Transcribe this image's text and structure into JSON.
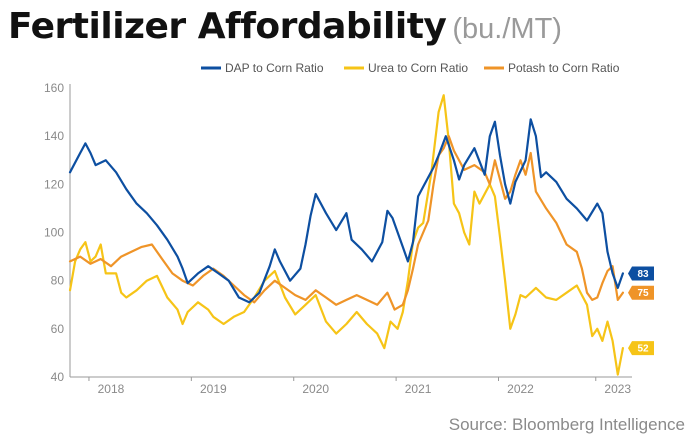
{
  "header": {
    "title": "Fertilizer Affordability",
    "unit": "(bu./MT)"
  },
  "footer": {
    "source": "Source: Bloomberg Intelligence"
  },
  "colors": {
    "DAP": "#0d4fa1",
    "Urea": "#f6c417",
    "Potash": "#ef9428",
    "axis": "#9a9a9a",
    "grid": "#e8e8e8"
  },
  "chart_data": {
    "type": "line",
    "title": "Fertilizer Affordability",
    "unit": "(bu./MT)",
    "xlabel": "",
    "ylabel": "",
    "ylim": [
      40,
      160
    ],
    "yticks": [
      40,
      60,
      80,
      100,
      120,
      140,
      160
    ],
    "xlim": [
      2017.75,
      2023.2
    ],
    "xticks": [
      {
        "x": 2018.15,
        "label": "2018"
      },
      {
        "x": 2019.15,
        "label": "2019"
      },
      {
        "x": 2020.15,
        "label": "2020"
      },
      {
        "x": 2021.15,
        "label": "2021"
      },
      {
        "x": 2022.15,
        "label": "2022"
      },
      {
        "x": 2023.1,
        "label": "2023"
      }
    ],
    "legend_position": "top-right",
    "grid": false,
    "series": [
      {
        "name": "DAP to Corn Ratio",
        "end_label": "83",
        "points": [
          [
            2017.75,
            125
          ],
          [
            2017.85,
            133
          ],
          [
            2017.9,
            137
          ],
          [
            2017.95,
            133
          ],
          [
            2018.0,
            128
          ],
          [
            2018.1,
            130
          ],
          [
            2018.2,
            125
          ],
          [
            2018.3,
            118
          ],
          [
            2018.4,
            112
          ],
          [
            2018.5,
            108
          ],
          [
            2018.6,
            103
          ],
          [
            2018.7,
            97
          ],
          [
            2018.8,
            90
          ],
          [
            2018.85,
            85
          ],
          [
            2018.9,
            79
          ],
          [
            2019.0,
            83
          ],
          [
            2019.1,
            86
          ],
          [
            2019.2,
            83
          ],
          [
            2019.3,
            80
          ],
          [
            2019.4,
            73
          ],
          [
            2019.5,
            71
          ],
          [
            2019.6,
            75
          ],
          [
            2019.7,
            86
          ],
          [
            2019.75,
            93
          ],
          [
            2019.8,
            88
          ],
          [
            2019.9,
            80
          ],
          [
            2020.0,
            85
          ],
          [
            2020.05,
            95
          ],
          [
            2020.1,
            107
          ],
          [
            2020.15,
            116
          ],
          [
            2020.25,
            108
          ],
          [
            2020.35,
            101
          ],
          [
            2020.45,
            108
          ],
          [
            2020.5,
            97
          ],
          [
            2020.6,
            93
          ],
          [
            2020.7,
            88
          ],
          [
            2020.8,
            96
          ],
          [
            2020.85,
            109
          ],
          [
            2020.9,
            106
          ],
          [
            2021.0,
            94
          ],
          [
            2021.05,
            88
          ],
          [
            2021.1,
            96
          ],
          [
            2021.15,
            115
          ],
          [
            2021.2,
            119
          ],
          [
            2021.3,
            127
          ],
          [
            2021.35,
            132
          ],
          [
            2021.42,
            140
          ],
          [
            2021.5,
            130
          ],
          [
            2021.55,
            122
          ],
          [
            2021.6,
            128
          ],
          [
            2021.7,
            135
          ],
          [
            2021.8,
            124
          ],
          [
            2021.85,
            140
          ],
          [
            2021.9,
            146
          ],
          [
            2021.95,
            132
          ],
          [
            2022.0,
            120
          ],
          [
            2022.05,
            112
          ],
          [
            2022.1,
            121
          ],
          [
            2022.2,
            130
          ],
          [
            2022.25,
            147
          ],
          [
            2022.3,
            140
          ],
          [
            2022.35,
            123
          ],
          [
            2022.4,
            125
          ],
          [
            2022.5,
            121
          ],
          [
            2022.6,
            114
          ],
          [
            2022.7,
            110
          ],
          [
            2022.8,
            105
          ],
          [
            2022.9,
            112
          ],
          [
            2022.95,
            108
          ],
          [
            2023.0,
            92
          ],
          [
            2023.05,
            83
          ],
          [
            2023.1,
            77
          ],
          [
            2023.15,
            83
          ]
        ]
      },
      {
        "name": "Urea to Corn Ratio",
        "end_label": "52",
        "points": [
          [
            2017.75,
            76
          ],
          [
            2017.8,
            88
          ],
          [
            2017.85,
            93
          ],
          [
            2017.9,
            96
          ],
          [
            2017.95,
            88
          ],
          [
            2018.0,
            90
          ],
          [
            2018.05,
            95
          ],
          [
            2018.1,
            83
          ],
          [
            2018.2,
            83
          ],
          [
            2018.25,
            75
          ],
          [
            2018.3,
            73
          ],
          [
            2018.4,
            76
          ],
          [
            2018.5,
            80
          ],
          [
            2018.6,
            82
          ],
          [
            2018.7,
            73
          ],
          [
            2018.8,
            68
          ],
          [
            2018.85,
            62
          ],
          [
            2018.9,
            67
          ],
          [
            2019.0,
            71
          ],
          [
            2019.1,
            68
          ],
          [
            2019.15,
            65
          ],
          [
            2019.25,
            62
          ],
          [
            2019.35,
            65
          ],
          [
            2019.45,
            67
          ],
          [
            2019.55,
            73
          ],
          [
            2019.65,
            80
          ],
          [
            2019.75,
            84
          ],
          [
            2019.85,
            73
          ],
          [
            2019.95,
            66
          ],
          [
            2020.05,
            70
          ],
          [
            2020.15,
            74
          ],
          [
            2020.25,
            63
          ],
          [
            2020.35,
            58
          ],
          [
            2020.45,
            62
          ],
          [
            2020.55,
            67
          ],
          [
            2020.65,
            62
          ],
          [
            2020.75,
            58
          ],
          [
            2020.82,
            52
          ],
          [
            2020.88,
            63
          ],
          [
            2020.95,
            60
          ],
          [
            2021.0,
            67
          ],
          [
            2021.05,
            80
          ],
          [
            2021.1,
            96
          ],
          [
            2021.15,
            102
          ],
          [
            2021.2,
            104
          ],
          [
            2021.28,
            125
          ],
          [
            2021.35,
            150
          ],
          [
            2021.4,
            157
          ],
          [
            2021.45,
            138
          ],
          [
            2021.5,
            112
          ],
          [
            2021.55,
            108
          ],
          [
            2021.6,
            100
          ],
          [
            2021.65,
            95
          ],
          [
            2021.7,
            117
          ],
          [
            2021.75,
            112
          ],
          [
            2021.85,
            120
          ],
          [
            2021.9,
            115
          ],
          [
            2021.95,
            98
          ],
          [
            2022.0,
            80
          ],
          [
            2022.05,
            60
          ],
          [
            2022.1,
            66
          ],
          [
            2022.15,
            74
          ],
          [
            2022.2,
            73
          ],
          [
            2022.3,
            77
          ],
          [
            2022.4,
            73
          ],
          [
            2022.5,
            72
          ],
          [
            2022.6,
            75
          ],
          [
            2022.7,
            78
          ],
          [
            2022.8,
            70
          ],
          [
            2022.85,
            57
          ],
          [
            2022.9,
            60
          ],
          [
            2022.95,
            55
          ],
          [
            2023.0,
            63
          ],
          [
            2023.05,
            55
          ],
          [
            2023.1,
            41
          ],
          [
            2023.15,
            52
          ]
        ]
      },
      {
        "name": "Potash to Corn Ratio",
        "end_label": "75",
        "points": [
          [
            2017.75,
            88
          ],
          [
            2017.85,
            90
          ],
          [
            2017.95,
            87
          ],
          [
            2018.05,
            89
          ],
          [
            2018.15,
            86
          ],
          [
            2018.25,
            90
          ],
          [
            2018.35,
            92
          ],
          [
            2018.45,
            94
          ],
          [
            2018.55,
            95
          ],
          [
            2018.65,
            89
          ],
          [
            2018.75,
            83
          ],
          [
            2018.85,
            80
          ],
          [
            2018.95,
            78
          ],
          [
            2019.05,
            82
          ],
          [
            2019.15,
            85
          ],
          [
            2019.25,
            82
          ],
          [
            2019.35,
            78
          ],
          [
            2019.45,
            74
          ],
          [
            2019.55,
            71
          ],
          [
            2019.65,
            76
          ],
          [
            2019.75,
            80
          ],
          [
            2019.85,
            77
          ],
          [
            2019.95,
            74
          ],
          [
            2020.05,
            72
          ],
          [
            2020.15,
            76
          ],
          [
            2020.25,
            73
          ],
          [
            2020.35,
            70
          ],
          [
            2020.45,
            72
          ],
          [
            2020.55,
            74
          ],
          [
            2020.65,
            72
          ],
          [
            2020.75,
            70
          ],
          [
            2020.85,
            75
          ],
          [
            2020.92,
            68
          ],
          [
            2021.0,
            70
          ],
          [
            2021.05,
            76
          ],
          [
            2021.1,
            85
          ],
          [
            2021.15,
            95
          ],
          [
            2021.25,
            105
          ],
          [
            2021.3,
            120
          ],
          [
            2021.35,
            132
          ],
          [
            2021.4,
            135
          ],
          [
            2021.45,
            140
          ],
          [
            2021.5,
            134
          ],
          [
            2021.6,
            126
          ],
          [
            2021.7,
            128
          ],
          [
            2021.8,
            125
          ],
          [
            2021.85,
            120
          ],
          [
            2021.9,
            130
          ],
          [
            2021.95,
            122
          ],
          [
            2022.0,
            114
          ],
          [
            2022.05,
            117
          ],
          [
            2022.1,
            124
          ],
          [
            2022.15,
            130
          ],
          [
            2022.2,
            124
          ],
          [
            2022.25,
            133
          ],
          [
            2022.3,
            117
          ],
          [
            2022.4,
            110
          ],
          [
            2022.5,
            104
          ],
          [
            2022.6,
            95
          ],
          [
            2022.7,
            92
          ],
          [
            2022.75,
            85
          ],
          [
            2022.8,
            75
          ],
          [
            2022.85,
            72
          ],
          [
            2022.9,
            73
          ],
          [
            2022.95,
            79
          ],
          [
            2023.0,
            84
          ],
          [
            2023.05,
            86
          ],
          [
            2023.1,
            72
          ],
          [
            2023.15,
            75
          ]
        ]
      }
    ]
  }
}
